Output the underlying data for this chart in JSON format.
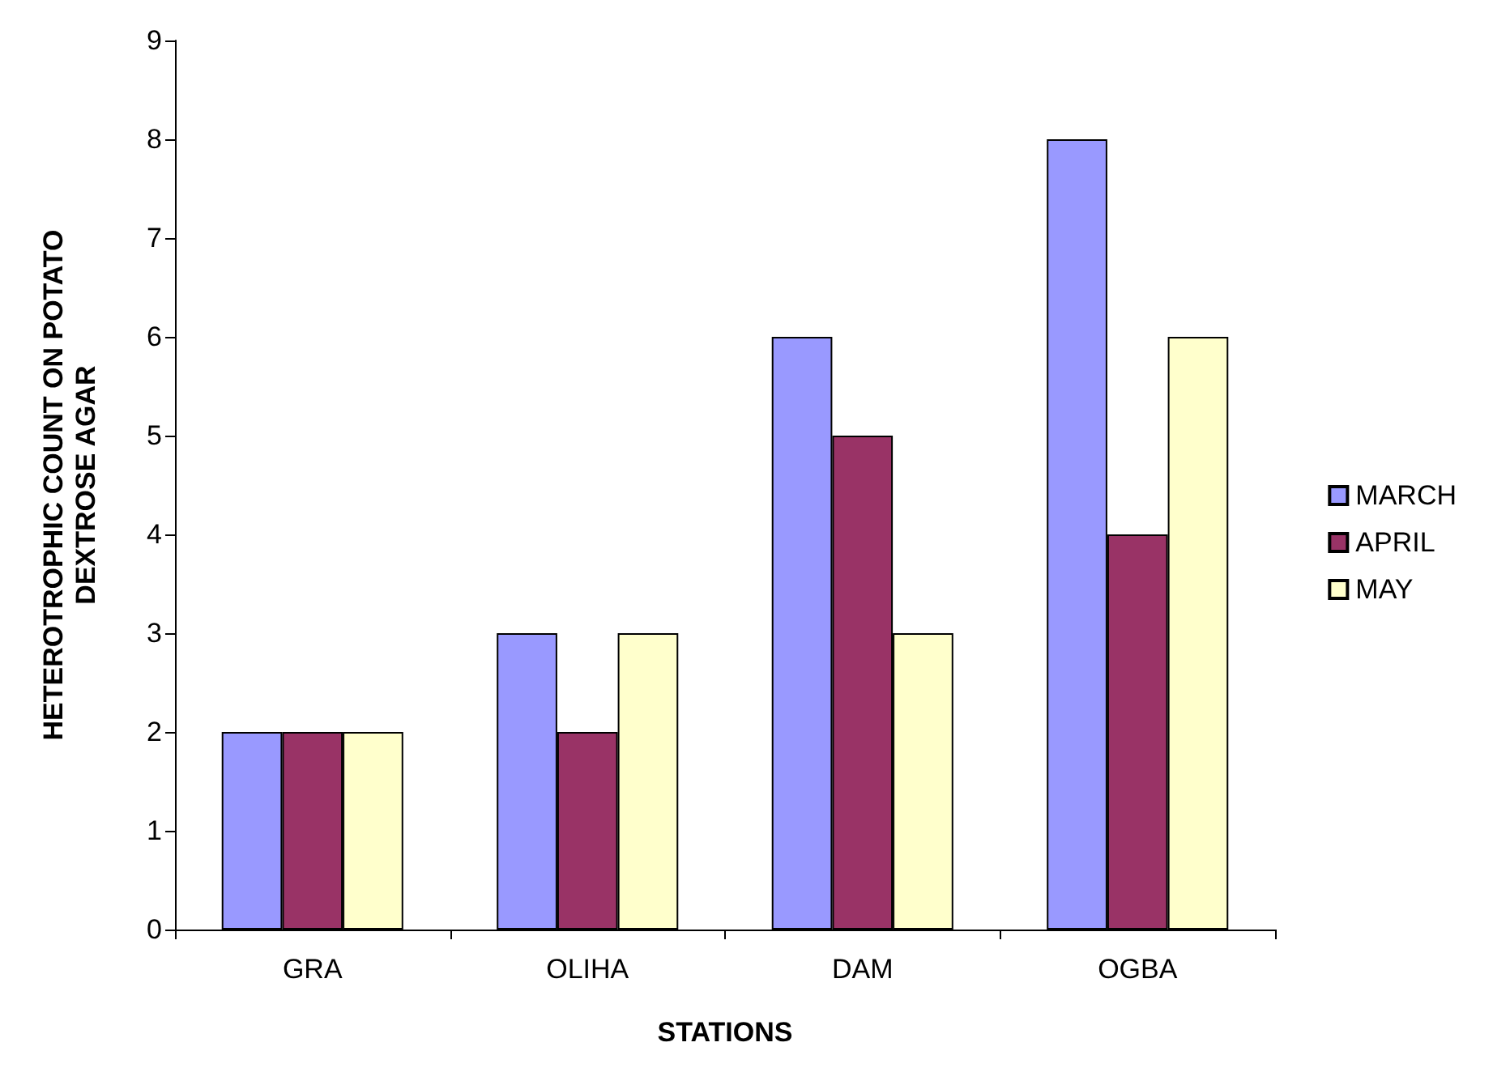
{
  "chart_data": {
    "type": "bar",
    "xlabel": "STATIONS",
    "ylabel": "HETEROTROPHIC COUNT ON POTATO\nDEXTROSE AGAR",
    "categories": [
      "GRA",
      "OLIHA",
      "DAM",
      "OGBA"
    ],
    "series": [
      {
        "name": "MARCH",
        "color": "#9999ff",
        "values": [
          2,
          3,
          6,
          8
        ]
      },
      {
        "name": "APRIL",
        "color": "#993366",
        "values": [
          2,
          2,
          5,
          4
        ]
      },
      {
        "name": "MAY",
        "color": "#ffffcc",
        "values": [
          2,
          3,
          3,
          6
        ]
      }
    ],
    "ylim": [
      0,
      9
    ],
    "yticks": [
      0,
      1,
      2,
      3,
      4,
      5,
      6,
      7,
      8,
      9
    ],
    "grid": false,
    "legend": "right"
  }
}
